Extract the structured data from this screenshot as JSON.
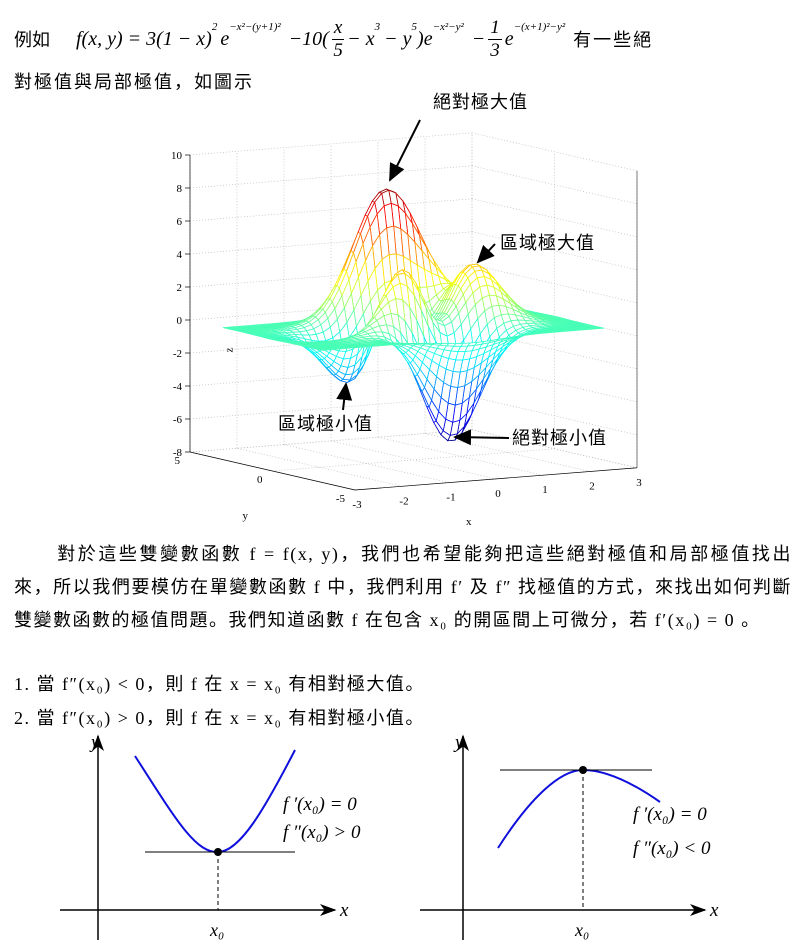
{
  "intro": {
    "lead": "例如",
    "formula": [
      "f(x, y) = 3(1 − x)",
      "2",
      "e",
      "−x²−(y+1)²",
      "−10(",
      "x",
      "5",
      "− x",
      "3",
      "− y",
      "5",
      ")e",
      "−x²−y²",
      "−",
      "1",
      "3",
      "e",
      "−(x+1)²−y²"
    ],
    "tail_1": "有一些絕",
    "tail_2": "對極值與局部極值，如圖示"
  },
  "figure": {
    "z_label": "z",
    "x_label": "x",
    "y_label": "y",
    "z_ticks": [
      10,
      8,
      6,
      4,
      2,
      0,
      -2,
      -4,
      -6,
      -8
    ],
    "x_ticks": [
      -3,
      -2,
      -1,
      0,
      1,
      2,
      3
    ],
    "y_ticks": [
      5,
      0,
      -5
    ],
    "annotations": [
      "絕對極大值",
      "區域極大值",
      "區域極小值",
      "絕對極小值"
    ]
  },
  "paragraph": "對於這些雙變數函數 f = f(x, y)，我們也希望能夠把這些絕對極值和局部極值找出來，所以我們要模仿在單變數函數 f 中，我們利用 f′ 及 f″ 找極值的方式，來找出如何判斷雙變數函數的極值問題。我們知道函數 f 在包含 x₀ 的開區間上可微分，若 f′(x₀) = 0 。",
  "conditions": [
    "1.  當 f″(x₀) < 0，則 f 在 x = x₀ 有相對極大值。",
    "2.  當 f″(x₀) > 0，則 f 在 x = x₀ 有相對極小值。"
  ],
  "diagrams": [
    {
      "y_label": "y",
      "x_label": "x",
      "x0_label": "x₀",
      "lines": [
        "f ′(x₀) = 0",
        "f ″(x₀) > 0"
      ]
    },
    {
      "y_label": "y",
      "x_label": "x",
      "x0_label": "x₀",
      "lines": [
        "f ′(x₀) = 0",
        "f ″(x₀) < 0"
      ]
    }
  ]
}
